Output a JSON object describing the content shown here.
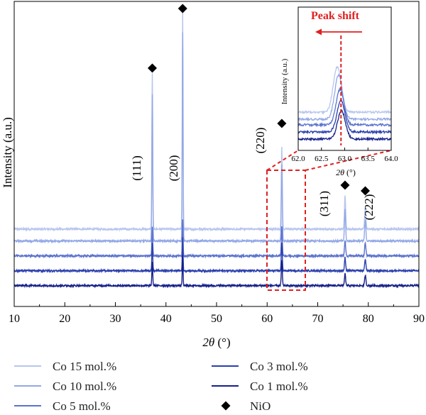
{
  "chart_data": [
    {
      "type": "line",
      "xlabel_var": "2θ",
      "xlabel_unit": " (°)",
      "ylabel": "Intensity (a.u.)",
      "xlim": [
        10,
        90
      ],
      "x_ticks": [
        10,
        20,
        30,
        40,
        50,
        60,
        70,
        80,
        90
      ],
      "y_ticks": [],
      "grid": false,
      "legend_position": "below",
      "peaks": [
        37.3,
        43.3,
        62.9,
        75.4,
        79.4
      ],
      "peak_labels": [
        {
          "text": "(111)",
          "x": 37.3
        },
        {
          "text": "(200)",
          "x": 43.3
        },
        {
          "text": "(220)",
          "x": 62.9
        },
        {
          "text": "(311)",
          "x": 75.4
        },
        {
          "text": "(222)",
          "x": 79.4
        }
      ],
      "marker_legend": "NiO",
      "series": [
        {
          "name": "Co 15 mol.%",
          "color": "#b7c6ef",
          "baseline": 0.52,
          "peak_heights": [
            1.05,
            1.47,
            0.55,
            0.22,
            0.15
          ]
        },
        {
          "name": "Co 10 mol.%",
          "color": "#93a8e6",
          "baseline": 0.44,
          "peak_heights": [
            0.98,
            1.4,
            0.52,
            0.21,
            0.14
          ]
        },
        {
          "name": "Co 5 mol.%",
          "color": "#5a72cf",
          "baseline": 0.34,
          "peak_heights": [
            0.2,
            0.25,
            0.2,
            0.1,
            0.09
          ]
        },
        {
          "name": "Co 3 mol.%",
          "color": "#2a3fae",
          "baseline": 0.24,
          "peak_heights": [
            0.18,
            0.22,
            0.19,
            0.09,
            0.08
          ]
        },
        {
          "name": "Co 1 mol.%",
          "color": "#15208a",
          "baseline": 0.14,
          "peak_heights": [
            0.16,
            0.2,
            0.17,
            0.08,
            0.07
          ]
        }
      ]
    },
    {
      "type": "line",
      "title": "Peak shift",
      "xlabel_var": "2θ",
      "xlabel_unit": " (°)",
      "ylabel": "Intensity (a.u.)",
      "xlim": [
        62.0,
        64.0
      ],
      "x_ticks": [
        "62.0",
        "62.5",
        "63.0",
        "63.5",
        "64.0"
      ],
      "reference_line_x": 62.92,
      "colors_title": "#e02020",
      "series_peaks": [
        62.84,
        62.87,
        62.9,
        62.92,
        62.93
      ]
    }
  ]
}
